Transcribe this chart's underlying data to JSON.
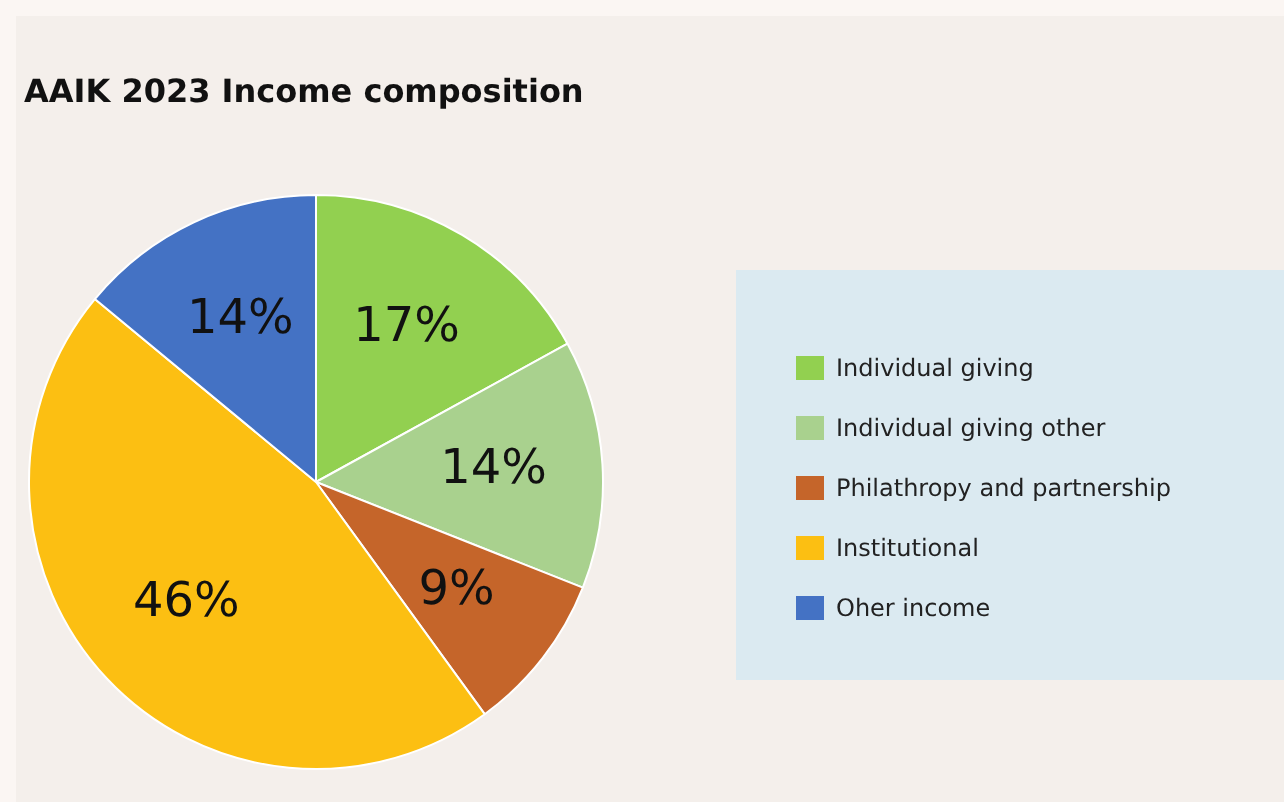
{
  "chart_data": {
    "type": "pie",
    "title": "AAIK 2023 Income composition",
    "categories": [
      "Individual giving",
      "Individual giving other",
      "Philathropy and partnership",
      "Institutional",
      "Oher income"
    ],
    "values": [
      17,
      14,
      9,
      46,
      14
    ],
    "colors": [
      "#92d050",
      "#a9d18e",
      "#c5652a",
      "#fcbf12",
      "#4472c4"
    ],
    "value_labels": [
      "17%",
      "14%",
      "9%",
      "46%",
      "14%"
    ],
    "legend": "right"
  }
}
